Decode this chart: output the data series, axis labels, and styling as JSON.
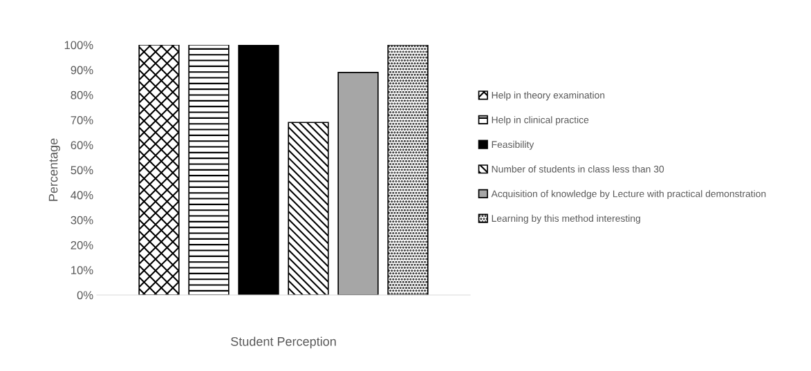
{
  "chart_data": {
    "type": "bar",
    "xlabel": "Student Perception",
    "ylabel": "Percentage",
    "categories": [
      null
    ],
    "series": [
      {
        "name": "Help in theory examination",
        "color": "#000000",
        "values": [
          100
        ]
      },
      {
        "name": "Help in clinical practice",
        "color": "#000000",
        "values": [
          100
        ]
      },
      {
        "name": "Feasibility",
        "color": "#000000",
        "values": [
          100
        ]
      },
      {
        "name": "Number of students in class less than 30",
        "color": "#000000",
        "values": [
          69
        ]
      },
      {
        "name": "Acquisition of knowledge by Lecture with practical demonstration",
        "color": "#a6a6a6",
        "values": [
          89
        ]
      },
      {
        "name": "Learning by this method interesting",
        "color": "#000000",
        "values": [
          100
        ]
      }
    ],
    "ylim": [
      0,
      100
    ],
    "yticks": [
      {
        "value": 0,
        "label": "0%"
      },
      {
        "value": 10,
        "label": "10%"
      },
      {
        "value": 20,
        "label": "20%"
      },
      {
        "value": 30,
        "label": "30%"
      },
      {
        "value": 40,
        "label": "40%"
      },
      {
        "value": 50,
        "label": "50%"
      },
      {
        "value": 60,
        "label": "60%"
      },
      {
        "value": 70,
        "label": "70%"
      },
      {
        "value": 80,
        "label": "80%"
      },
      {
        "value": 90,
        "label": "90%"
      },
      {
        "value": 100,
        "label": "100%"
      }
    ],
    "grid": false,
    "legend": "right"
  }
}
